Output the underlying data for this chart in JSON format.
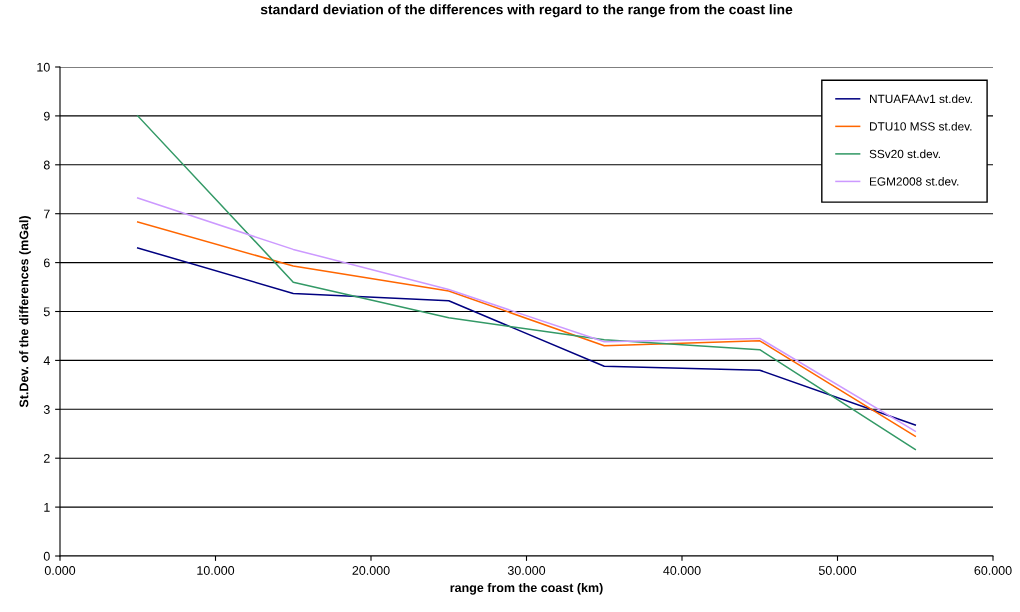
{
  "chart_data": {
    "type": "line",
    "title": "standard deviation of the differences with regard to the range from the coast line",
    "xlabel": "range from the coast (km)",
    "ylabel": "St.Dev. of the differences (mGal)",
    "x": [
      5,
      15,
      25,
      35,
      45,
      55
    ],
    "series": [
      {
        "name": "NTUAFAAv1 st.dev.",
        "color": "#000080",
        "values": [
          6.3,
          5.37,
          5.22,
          3.88,
          3.8,
          2.68
        ]
      },
      {
        "name": "DTU10 MSS st.dev.",
        "color": "#ff6600",
        "values": [
          6.83,
          5.93,
          5.42,
          4.3,
          4.4,
          2.45
        ]
      },
      {
        "name": "SSv20 st.dev.",
        "color": "#339966",
        "values": [
          9.0,
          5.6,
          4.87,
          4.42,
          4.22,
          2.18
        ]
      },
      {
        "name": "EGM2008 st.dev.",
        "color": "#cc99ff",
        "values": [
          7.32,
          6.27,
          5.45,
          4.38,
          4.45,
          2.55
        ]
      }
    ],
    "xlim": [
      0,
      60
    ],
    "xticks": [
      {
        "value": 0,
        "label": "0.000"
      },
      {
        "value": 10,
        "label": "10.000"
      },
      {
        "value": 20,
        "label": "20.000"
      },
      {
        "value": 30,
        "label": "30.000"
      },
      {
        "value": 40,
        "label": "40.000"
      },
      {
        "value": 50,
        "label": "50.000"
      },
      {
        "value": 60,
        "label": "60.000"
      }
    ],
    "ylim": [
      0,
      10
    ],
    "yticks": [
      0,
      1,
      2,
      3,
      4,
      5,
      6,
      7,
      8,
      9,
      10
    ],
    "grid": "y",
    "legend": "top right",
    "marker": "none",
    "line_style": "solid"
  }
}
